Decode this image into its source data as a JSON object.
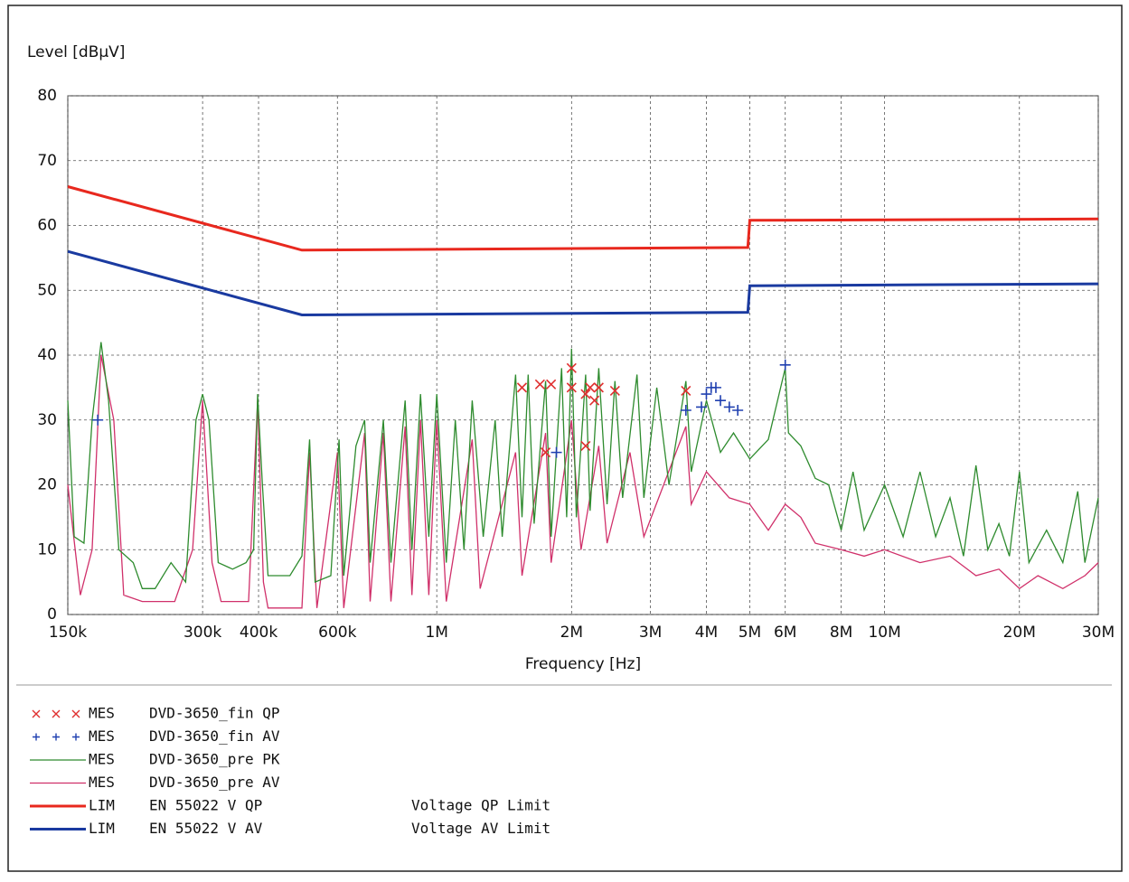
{
  "chart_data": {
    "type": "line",
    "y_label": "Level [dBµV]",
    "x_label": "Frequency [Hz]",
    "xscale": "log",
    "grid": true,
    "xlim": [
      150000,
      30000000
    ],
    "ylim": [
      0,
      80
    ],
    "yticks": [
      0,
      10,
      20,
      30,
      40,
      50,
      60,
      70,
      80
    ],
    "xticks": [
      {
        "value": 150000,
        "label": "150k"
      },
      {
        "value": 300000,
        "label": "300k"
      },
      {
        "value": 400000,
        "label": "400k"
      },
      {
        "value": 600000,
        "label": "600k"
      },
      {
        "value": 1000000,
        "label": "1M"
      },
      {
        "value": 2000000,
        "label": "2M"
      },
      {
        "value": 3000000,
        "label": "3M"
      },
      {
        "value": 4000000,
        "label": "4M"
      },
      {
        "value": 5000000,
        "label": "5M"
      },
      {
        "value": 6000000,
        "label": "6M"
      },
      {
        "value": 8000000,
        "label": "8M"
      },
      {
        "value": 10000000,
        "label": "10M"
      },
      {
        "value": 20000000,
        "label": "20M"
      },
      {
        "value": 30000000,
        "label": "30M"
      }
    ],
    "series": [
      {
        "kind": "MES",
        "name": "DVD-3650_fin QP",
        "marker": "x",
        "color": "#e03030",
        "x": [
          1550000,
          1700000,
          1750000,
          1800000,
          2000000,
          2000000,
          2150000,
          2150000,
          2200000,
          2250000,
          2300000,
          2500000,
          3600000
        ],
        "values": [
          35,
          35.5,
          25,
          35.5,
          38,
          35,
          34,
          26,
          35,
          33,
          35,
          34.5,
          34.5
        ]
      },
      {
        "kind": "MES",
        "name": "DVD-3650_fin AV",
        "marker": "+",
        "color": "#2040b0",
        "x": [
          175000,
          1850000,
          3600000,
          3900000,
          4000000,
          4100000,
          4200000,
          4300000,
          4500000,
          4700000,
          6000000
        ],
        "values": [
          30,
          25,
          31.5,
          32,
          34,
          35,
          35,
          33,
          32,
          31.5,
          38.5
        ]
      },
      {
        "kind": "MES",
        "name": "DVD-3650_pre PK",
        "marker": "line",
        "color": "#2e8b2e",
        "x": [
          150000,
          155000,
          163000,
          170000,
          178000,
          185000,
          195000,
          210000,
          220000,
          235000,
          255000,
          275000,
          290000,
          300000,
          310000,
          325000,
          350000,
          375000,
          390000,
          398000,
          408000,
          420000,
          470000,
          500000,
          520000,
          535000,
          580000,
          605000,
          620000,
          660000,
          690000,
          710000,
          760000,
          790000,
          850000,
          880000,
          920000,
          960000,
          1000000,
          1050000,
          1100000,
          1150000,
          1200000,
          1270000,
          1350000,
          1400000,
          1500000,
          1550000,
          1600000,
          1650000,
          1750000,
          1800000,
          1900000,
          1950000,
          2000000,
          2050000,
          2150000,
          2200000,
          2300000,
          2400000,
          2500000,
          2600000,
          2800000,
          2900000,
          3100000,
          3300000,
          3600000,
          3700000,
          4000000,
          4300000,
          4600000,
          5000000,
          5500000,
          6000000,
          6100000,
          6500000,
          7000000,
          7500000,
          8000000,
          8500000,
          9000000,
          10000000,
          11000000,
          12000000,
          13000000,
          14000000,
          15000000,
          16000000,
          17000000,
          18000000,
          19000000,
          20000000,
          21000000,
          23000000,
          25000000,
          27000000,
          28000000,
          30000000
        ],
        "values": [
          33,
          12,
          11,
          30,
          42,
          33,
          10,
          8,
          4,
          4,
          8,
          5,
          30,
          34,
          30,
          8,
          7,
          8,
          10,
          34,
          20,
          6,
          6,
          9,
          27,
          5,
          6,
          27,
          6,
          26,
          30,
          8,
          30,
          8,
          33,
          10,
          34,
          12,
          34,
          8,
          30,
          10,
          33,
          12,
          30,
          12,
          37,
          15,
          37,
          14,
          36,
          12,
          38,
          15,
          41,
          15,
          37,
          16,
          38,
          17,
          36,
          18,
          37,
          18,
          35,
          20,
          36,
          22,
          33,
          25,
          28,
          24,
          27,
          38,
          28,
          26,
          21,
          20,
          13,
          22,
          13,
          20,
          12,
          22,
          12,
          18,
          9,
          23,
          10,
          14,
          9,
          22,
          8,
          13,
          8,
          19,
          8,
          18
        ]
      },
      {
        "kind": "MES",
        "name": "DVD-3650_pre AV",
        "marker": "line",
        "color": "#d0306a",
        "x": [
          150000,
          160000,
          170000,
          178000,
          190000,
          200000,
          220000,
          260000,
          285000,
          300000,
          315000,
          330000,
          380000,
          398000,
          410000,
          420000,
          500000,
          520000,
          540000,
          600000,
          620000,
          690000,
          710000,
          760000,
          790000,
          850000,
          880000,
          920000,
          960000,
          1000000,
          1050000,
          1200000,
          1250000,
          1500000,
          1550000,
          1750000,
          1800000,
          2000000,
          2100000,
          2300000,
          2400000,
          2700000,
          2900000,
          3600000,
          3700000,
          4000000,
          4500000,
          5000000,
          5500000,
          6000000,
          6500000,
          7000000,
          8000000,
          9000000,
          10000000,
          12000000,
          14000000,
          16000000,
          18000000,
          20000000,
          22000000,
          25000000,
          28000000,
          30000000
        ],
        "values": [
          20,
          3,
          10,
          40,
          30,
          3,
          2,
          2,
          10,
          33,
          8,
          2,
          2,
          33,
          5,
          1,
          1,
          25,
          1,
          25,
          1,
          28,
          2,
          28,
          2,
          29,
          3,
          30,
          3,
          30,
          2,
          27,
          4,
          25,
          6,
          28,
          8,
          30,
          10,
          26,
          11,
          25,
          12,
          29,
          17,
          22,
          18,
          17,
          13,
          17,
          15,
          11,
          10,
          9,
          10,
          8,
          9,
          6,
          7,
          4,
          6,
          4,
          6,
          8
        ]
      },
      {
        "kind": "LIM",
        "name": "EN 55022 V QP",
        "note": "Voltage QP Limit",
        "marker": "line",
        "color": "#e8281e",
        "x": [
          150000,
          500000,
          4950000,
          5000000,
          30000000
        ],
        "values": [
          66,
          56.2,
          56.6,
          60.8,
          61
        ]
      },
      {
        "kind": "LIM",
        "name": "EN 55022 V AV",
        "note": "Voltage AV Limit",
        "marker": "line",
        "color": "#1a3aa0",
        "x": [
          150000,
          500000,
          4950000,
          5000000,
          30000000
        ],
        "values": [
          56,
          46.2,
          46.6,
          50.7,
          51
        ]
      }
    ]
  }
}
